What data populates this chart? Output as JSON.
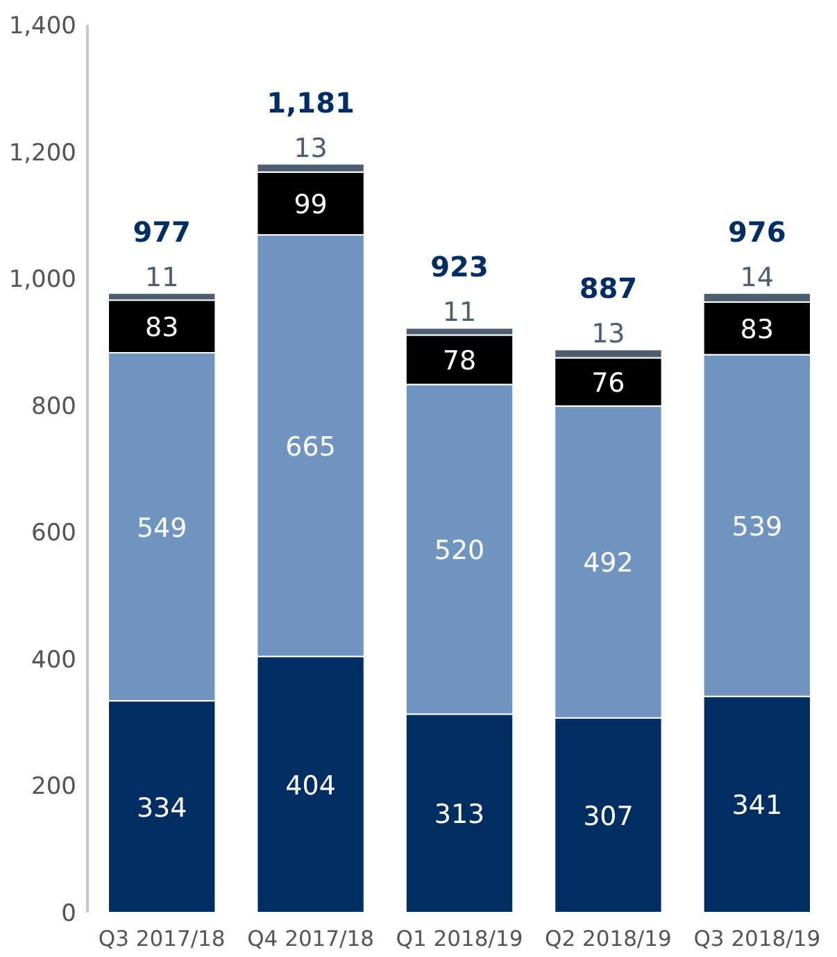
{
  "chart_data": {
    "type": "bar",
    "stacked": true,
    "categories": [
      "Q3 2017/18",
      "Q4 2017/18",
      "Q1 2018/19",
      "Q2 2018/19",
      "Q3 2018/19"
    ],
    "series": [
      {
        "color": "#002d62",
        "values": [
          334,
          404,
          313,
          307,
          341
        ]
      },
      {
        "color": "#7094c0",
        "values": [
          549,
          665,
          520,
          492,
          539
        ]
      },
      {
        "color": "#000000",
        "values": [
          83,
          99,
          78,
          76,
          83
        ]
      },
      {
        "color": "#4d5e70",
        "values": [
          11,
          13,
          11,
          13,
          14
        ]
      }
    ],
    "totals": [
      "977",
      "1,181",
      "923",
      "887",
      "976"
    ],
    "data_labels": true,
    "ylim": [
      0,
      1400
    ],
    "yticks": [
      0,
      200,
      400,
      600,
      800,
      {
        "value": 1000,
        "label": "1,000"
      },
      {
        "value": 1200,
        "label": "1,200"
      },
      {
        "value": 1400,
        "label": "1,400"
      }
    ],
    "grid": false
  }
}
